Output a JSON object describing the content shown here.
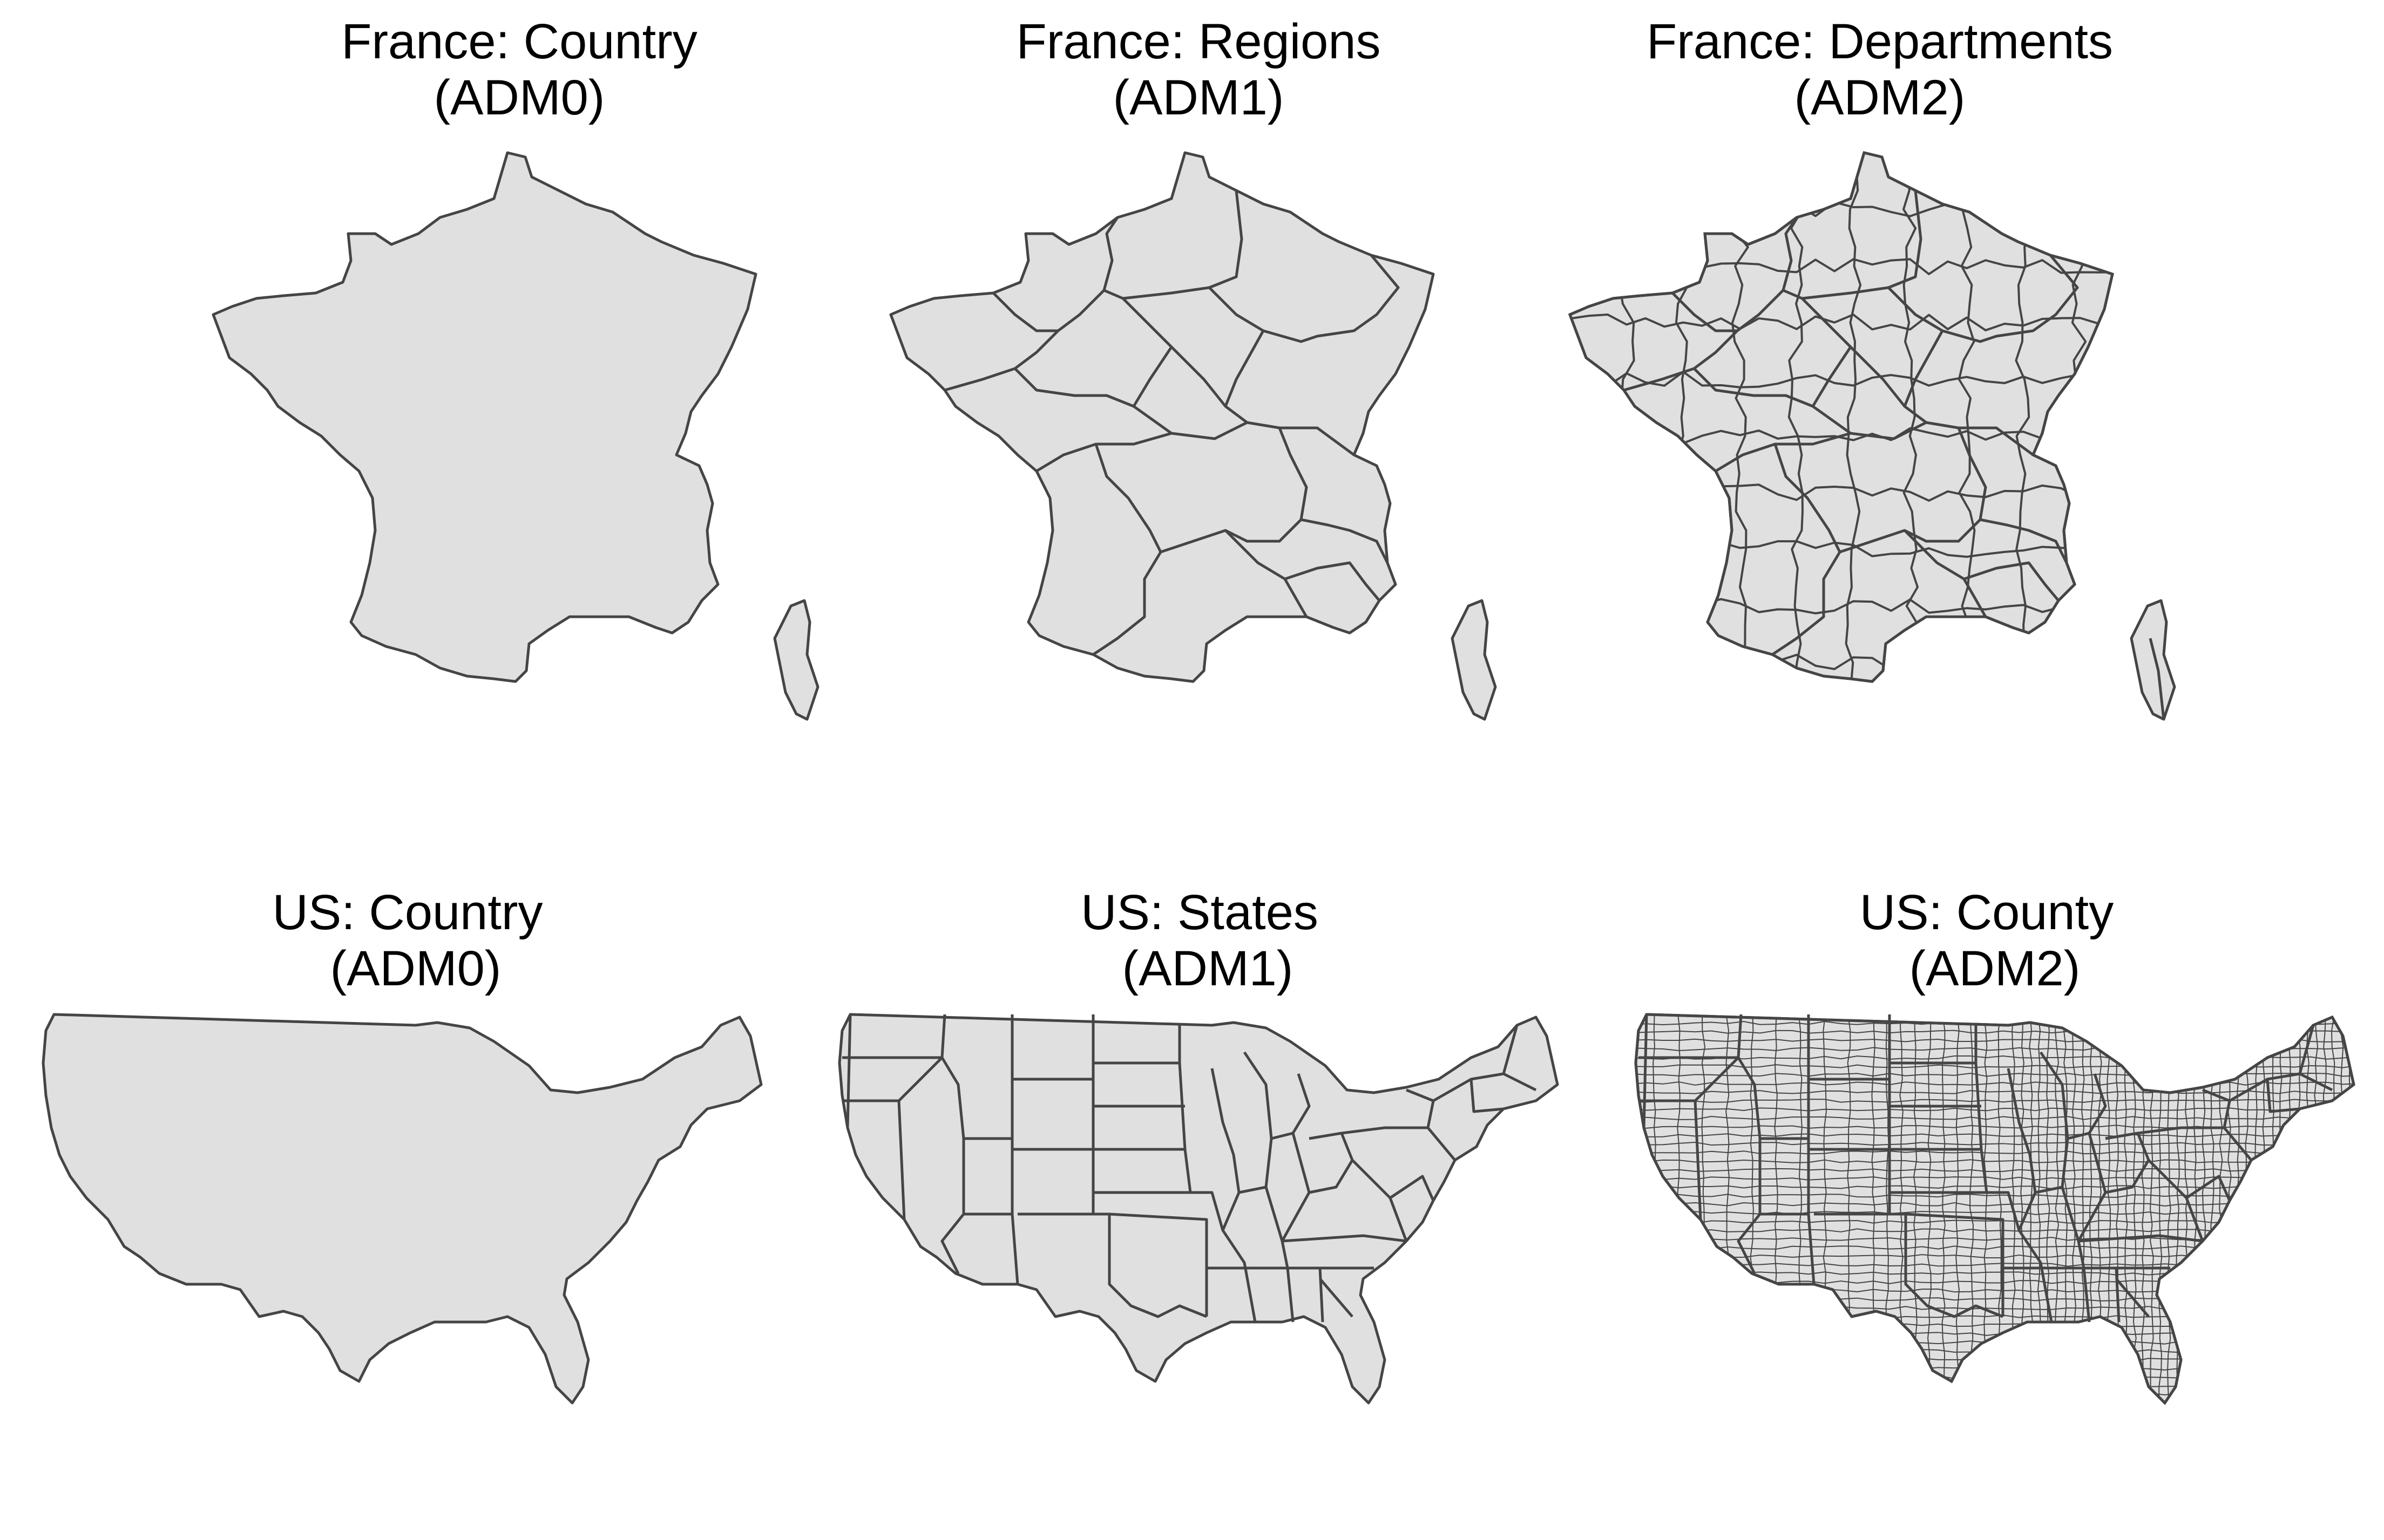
{
  "figure": {
    "panels": [
      {
        "id": "fr-adm0",
        "title_line1": "France: Country",
        "title_line2": "(ADM0)",
        "map": "france",
        "level": "ADM0"
      },
      {
        "id": "fr-adm1",
        "title_line1": "France: Regions",
        "title_line2": "(ADM1)",
        "map": "france",
        "level": "ADM1"
      },
      {
        "id": "fr-adm2",
        "title_line1": "France: Departments",
        "title_line2": "(ADM2)",
        "map": "france",
        "level": "ADM2"
      },
      {
        "id": "us-adm0",
        "title_line1": "US: Country",
        "title_line2": "(ADM0)",
        "map": "us",
        "level": "ADM0"
      },
      {
        "id": "us-adm1",
        "title_line1": "US: States",
        "title_line2": "(ADM1)",
        "map": "us",
        "level": "ADM1"
      },
      {
        "id": "us-adm2",
        "title_line1": "US: County",
        "title_line2": "(ADM2)",
        "map": "us",
        "level": "ADM2"
      }
    ],
    "colors": {
      "land": "#e0e0e0",
      "border": "#454545",
      "background": "#ffffff"
    }
  }
}
